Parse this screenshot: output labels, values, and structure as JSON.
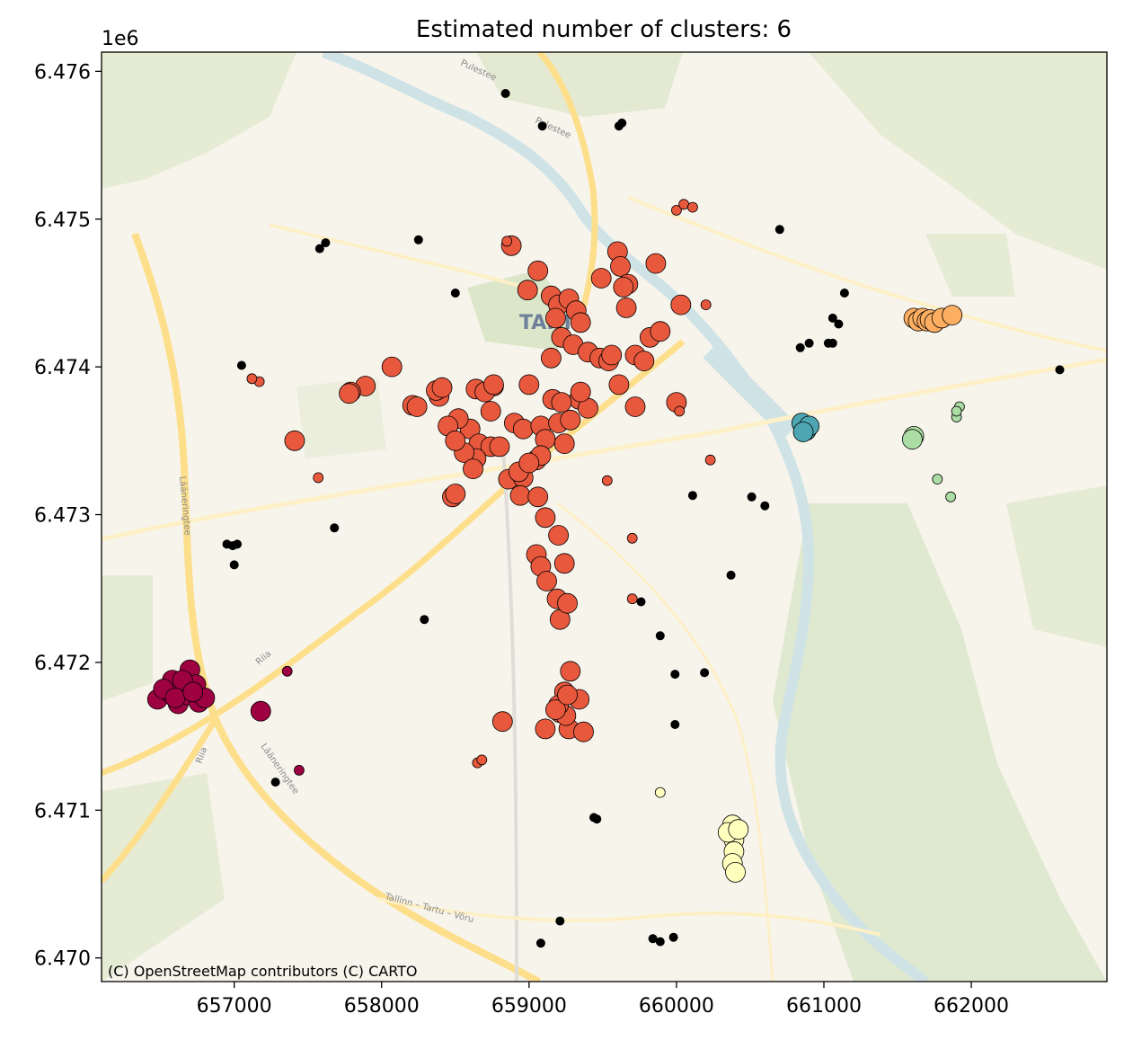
{
  "chart_data": {
    "type": "scatter",
    "title": "Estimated number of clusters: 6",
    "y_offset_label": "1e6",
    "attribution": "(C) OpenStreetMap contributors (C) CARTO",
    "map_labels": [
      "TARTU",
      "Pulestee",
      "Lääneringtee",
      "Riia",
      "Tallinn – Tartu – Võru"
    ],
    "xlim": [
      656100,
      662920
    ],
    "ylim": [
      6469840,
      6476130
    ],
    "xticks": [
      657000,
      658000,
      659000,
      660000,
      661000,
      662000
    ],
    "xtick_labels": [
      "657000",
      "658000",
      "659000",
      "660000",
      "661000",
      "662000"
    ],
    "yticks": [
      6470000,
      6471000,
      6472000,
      6473000,
      6474000,
      6475000,
      6476000
    ],
    "ytick_labels": [
      "6.470",
      "6.471",
      "6.472",
      "6.473",
      "6.474",
      "6.475",
      "6.476"
    ],
    "grid": false,
    "basemap": "CARTO Voyager",
    "clusters": [
      {
        "color": "#9e0142",
        "points": [
          [
            656480,
            6471750,
            1
          ],
          [
            656560,
            6471800,
            1
          ],
          [
            656620,
            6471720,
            1
          ],
          [
            656680,
            6471780,
            1
          ],
          [
            656700,
            6471950,
            1
          ],
          [
            656740,
            6471850,
            1
          ],
          [
            656760,
            6471730,
            1
          ],
          [
            656800,
            6471760,
            1
          ],
          [
            656580,
            6471880,
            1
          ],
          [
            656650,
            6471880,
            1
          ],
          [
            656520,
            6471820,
            1
          ],
          [
            656600,
            6471760,
            1
          ],
          [
            656720,
            6471800,
            1
          ],
          [
            657180,
            6471670,
            1
          ],
          [
            657360,
            6471940,
            0
          ],
          [
            657440,
            6471270,
            0
          ]
        ]
      },
      {
        "color": "#e8583d",
        "points": [
          [
            658880,
            6474820,
            1
          ],
          [
            658850,
            6474850,
            0
          ],
          [
            659060,
            6474650,
            1
          ],
          [
            658990,
            6474520,
            1
          ],
          [
            659150,
            6474480,
            1
          ],
          [
            659200,
            6474420,
            1
          ],
          [
            659270,
            6474460,
            1
          ],
          [
            659320,
            6474380,
            1
          ],
          [
            659180,
            6474330,
            1
          ],
          [
            659350,
            6474300,
            1
          ],
          [
            659220,
            6474200,
            1
          ],
          [
            659300,
            6474150,
            1
          ],
          [
            659400,
            6474100,
            1
          ],
          [
            659150,
            6474060,
            1
          ],
          [
            659480,
            6474060,
            1
          ],
          [
            659540,
            6474040,
            1
          ],
          [
            659560,
            6474080,
            1
          ],
          [
            659720,
            6474080,
            1
          ],
          [
            659780,
            6474040,
            1
          ],
          [
            659820,
            6474200,
            1
          ],
          [
            659890,
            6474240,
            1
          ],
          [
            659600,
            6474780,
            1
          ],
          [
            659620,
            6474680,
            1
          ],
          [
            659670,
            6474560,
            1
          ],
          [
            659660,
            6474400,
            1
          ],
          [
            659860,
            6474700,
            1
          ],
          [
            660030,
            6474420,
            1
          ],
          [
            659610,
            6473880,
            1
          ],
          [
            659720,
            6473730,
            1
          ],
          [
            660000,
            6473760,
            1
          ],
          [
            660020,
            6473700,
            0
          ],
          [
            659490,
            6474600,
            1
          ],
          [
            659640,
            6474540,
            1
          ],
          [
            658390,
            6473800,
            1
          ],
          [
            658370,
            6473840,
            1
          ],
          [
            658410,
            6473860,
            1
          ],
          [
            658760,
            6473870,
            1
          ],
          [
            658640,
            6473850,
            1
          ],
          [
            658700,
            6473830,
            1
          ],
          [
            658740,
            6473700,
            1
          ],
          [
            658600,
            6473580,
            1
          ],
          [
            658520,
            6473650,
            1
          ],
          [
            658450,
            6473600,
            1
          ],
          [
            658660,
            6473480,
            1
          ],
          [
            658740,
            6473460,
            1
          ],
          [
            658640,
            6473380,
            1
          ],
          [
            658560,
            6473420,
            1
          ],
          [
            658500,
            6473500,
            1
          ],
          [
            658620,
            6473310,
            1
          ],
          [
            658800,
            6473460,
            1
          ],
          [
            658900,
            6473620,
            1
          ],
          [
            658960,
            6473580,
            1
          ],
          [
            659080,
            6473600,
            1
          ],
          [
            659110,
            6473510,
            1
          ],
          [
            659200,
            6473620,
            1
          ],
          [
            659240,
            6473480,
            1
          ],
          [
            659280,
            6473640,
            1
          ],
          [
            659340,
            6473780,
            1
          ],
          [
            659400,
            6473720,
            1
          ],
          [
            659350,
            6473830,
            1
          ],
          [
            659160,
            6473780,
            1
          ],
          [
            659220,
            6473760,
            1
          ],
          [
            659000,
            6473880,
            1
          ],
          [
            658760,
            6473880,
            1
          ],
          [
            658860,
            6473240,
            1
          ],
          [
            658960,
            6473250,
            1
          ],
          [
            658930,
            6473290,
            1
          ],
          [
            659050,
            6473370,
            1
          ],
          [
            659080,
            6473400,
            1
          ],
          [
            659000,
            6473350,
            1
          ],
          [
            658480,
            6473120,
            1
          ],
          [
            658500,
            6473140,
            1
          ],
          [
            658940,
            6473130,
            1
          ],
          [
            659060,
            6473120,
            1
          ],
          [
            659110,
            6472980,
            1
          ],
          [
            659200,
            6472860,
            1
          ],
          [
            658210,
            6473740,
            1
          ],
          [
            658240,
            6473730,
            1
          ],
          [
            658070,
            6474000,
            1
          ],
          [
            657890,
            6473870,
            1
          ],
          [
            657790,
            6473830,
            1
          ],
          [
            657780,
            6473820,
            1
          ],
          [
            657410,
            6473500,
            1
          ],
          [
            659050,
            6472730,
            1
          ],
          [
            659080,
            6472650,
            1
          ],
          [
            659240,
            6472670,
            1
          ],
          [
            659120,
            6472550,
            1
          ],
          [
            659190,
            6472430,
            1
          ],
          [
            659210,
            6472290,
            1
          ],
          [
            659260,
            6472400,
            1
          ],
          [
            659280,
            6471940,
            1
          ],
          [
            659240,
            6471800,
            1
          ],
          [
            659210,
            6471660,
            1
          ],
          [
            659340,
            6471750,
            1
          ],
          [
            659270,
            6471550,
            1
          ],
          [
            659370,
            6471530,
            1
          ],
          [
            659110,
            6471550,
            1
          ],
          [
            659250,
            6471640,
            1
          ],
          [
            659200,
            6471710,
            1
          ],
          [
            658820,
            6471600,
            1
          ],
          [
            658650,
            6471320,
            0
          ],
          [
            658680,
            6471340,
            0
          ],
          [
            659180,
            6471680,
            1
          ],
          [
            659260,
            6471780,
            1
          ],
          [
            657170,
            6473900,
            0
          ],
          [
            657120,
            6473920,
            0
          ],
          [
            657570,
            6473250,
            0
          ],
          [
            659530,
            6473230,
            0
          ],
          [
            659700,
            6472840,
            0
          ],
          [
            659700,
            6472430,
            0
          ],
          [
            660000,
            6475060,
            0
          ],
          [
            660050,
            6475100,
            0
          ],
          [
            660110,
            6475080,
            0
          ],
          [
            660200,
            6474420,
            0
          ],
          [
            660230,
            6473370,
            0
          ]
        ]
      },
      {
        "color": "#fdae61",
        "points": [
          [
            661610,
            6474330,
            1
          ],
          [
            661640,
            6474310,
            1
          ],
          [
            661670,
            6474330,
            1
          ],
          [
            661700,
            6474310,
            1
          ],
          [
            661720,
            6474320,
            1
          ],
          [
            661750,
            6474300,
            1
          ],
          [
            661800,
            6474330,
            1
          ],
          [
            661870,
            6474350,
            1
          ]
        ]
      },
      {
        "color": "#fefebd",
        "points": [
          [
            660380,
            6470900,
            1
          ],
          [
            660390,
            6470800,
            1
          ],
          [
            660390,
            6470720,
            1
          ],
          [
            660380,
            6470640,
            1
          ],
          [
            660400,
            6470580,
            1
          ],
          [
            660350,
            6470850,
            1
          ],
          [
            660420,
            6470870,
            1
          ],
          [
            659890,
            6471120,
            0
          ]
        ]
      },
      {
        "color": "#abdda4",
        "points": [
          [
            661610,
            6473530,
            1
          ],
          [
            661600,
            6473510,
            1
          ],
          [
            661770,
            6473240,
            0
          ],
          [
            661860,
            6473120,
            0
          ],
          [
            661900,
            6473660,
            0
          ],
          [
            661920,
            6473730,
            0
          ],
          [
            661900,
            6473700,
            0
          ]
        ]
      },
      {
        "color": "#4ea6b2",
        "points": [
          [
            660850,
            6473620,
            1
          ],
          [
            660880,
            6473570,
            1
          ],
          [
            660900,
            6473600,
            1
          ],
          [
            660860,
            6473560,
            1
          ]
        ]
      },
      {
        "color": "#000000",
        "points": [
          [
            658840,
            6475850,
            2
          ],
          [
            659090,
            6475630,
            2
          ],
          [
            659630,
            6475650,
            2
          ],
          [
            659610,
            6475630,
            2
          ],
          [
            657580,
            6474800,
            2
          ],
          [
            657620,
            6474840,
            2
          ],
          [
            658250,
            6474860,
            2
          ],
          [
            658500,
            6474500,
            2
          ],
          [
            660700,
            6474930,
            2
          ],
          [
            661140,
            6474500,
            2
          ],
          [
            661060,
            6474330,
            2
          ],
          [
            661100,
            6474290,
            2
          ],
          [
            661030,
            6474160,
            2
          ],
          [
            661060,
            6474160,
            2
          ],
          [
            660900,
            6474160,
            2
          ],
          [
            660840,
            6474130,
            2
          ],
          [
            662600,
            6473980,
            2
          ],
          [
            657050,
            6474010,
            2
          ],
          [
            660110,
            6473130,
            2
          ],
          [
            660510,
            6473120,
            2
          ],
          [
            660600,
            6473060,
            2
          ],
          [
            656950,
            6472800,
            2
          ],
          [
            657020,
            6472800,
            2
          ],
          [
            656990,
            6472790,
            2
          ],
          [
            657000,
            6472660,
            2
          ],
          [
            657680,
            6472910,
            2
          ],
          [
            658290,
            6472290,
            2
          ],
          [
            659760,
            6472410,
            2
          ],
          [
            659890,
            6472180,
            2
          ],
          [
            660370,
            6472590,
            2
          ],
          [
            659990,
            6471920,
            2
          ],
          [
            660190,
            6471930,
            2
          ],
          [
            659990,
            6471580,
            2
          ],
          [
            657280,
            6471190,
            2
          ],
          [
            659460,
            6470940,
            2
          ],
          [
            659440,
            6470950,
            2
          ],
          [
            659210,
            6470250,
            2
          ],
          [
            659080,
            6470100,
            2
          ],
          [
            659840,
            6470130,
            2
          ],
          [
            659890,
            6470110,
            2
          ],
          [
            659980,
            6470140,
            2
          ]
        ]
      }
    ]
  }
}
